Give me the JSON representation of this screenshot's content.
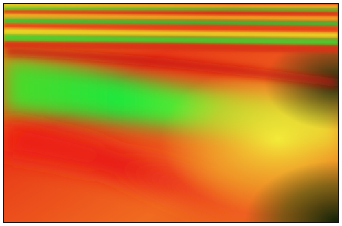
{
  "image": {
    "subject": "abstract-gradient-wave-pattern",
    "border_color": "#111111",
    "palette": {
      "red": "#e81414",
      "orange": "#f0641e",
      "yellow": "#f2e630",
      "green": "#1ee63c",
      "dark": "#1a2a0a"
    }
  }
}
